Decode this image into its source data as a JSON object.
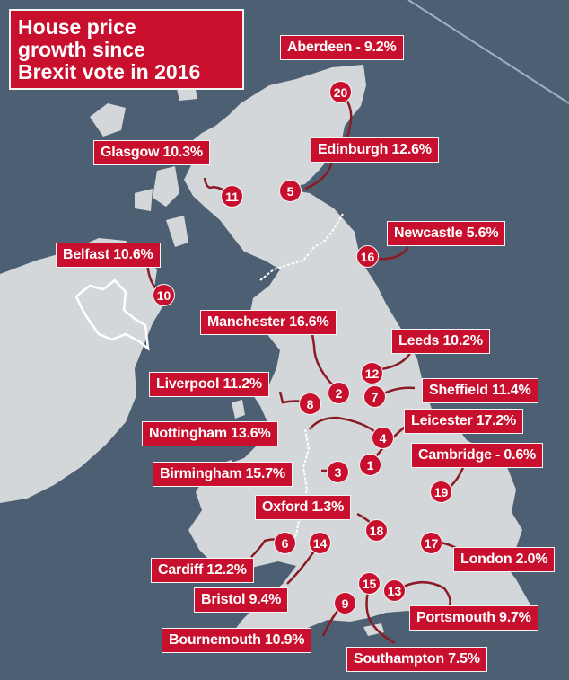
{
  "title_lines": [
    "House price",
    "growth since",
    "Brexit vote in 2016"
  ],
  "colors": {
    "sea": "#4d5f72",
    "land": "#d4d7da",
    "accent": "#c8102e",
    "border": "#ffffff"
  },
  "cities": [
    {
      "rank": "1",
      "label": "Leicester 17.2%"
    },
    {
      "rank": "2",
      "label": "Manchester 16.6%"
    },
    {
      "rank": "3",
      "label": "Birmingham 15.7%"
    },
    {
      "rank": "4",
      "label": "Nottingham 13.6%"
    },
    {
      "rank": "5",
      "label": "Edinburgh 12.6%"
    },
    {
      "rank": "6",
      "label": "Cardiff 12.2%"
    },
    {
      "rank": "7",
      "label": "Sheffield 11.4%"
    },
    {
      "rank": "8",
      "label": "Liverpool 11.2%"
    },
    {
      "rank": "9",
      "label": "Bournemouth 10.9%"
    },
    {
      "rank": "10",
      "label": "Belfast 10.6%"
    },
    {
      "rank": "11",
      "label": "Glasgow 10.3%"
    },
    {
      "rank": "12",
      "label": "Leeds 10.2%"
    },
    {
      "rank": "13",
      "label": "Portsmouth 9.7%"
    },
    {
      "rank": "14",
      "label": "Bristol 9.4%"
    },
    {
      "rank": "15",
      "label": "Southampton 7.5%"
    },
    {
      "rank": "16",
      "label": "Newcastle 5.6%"
    },
    {
      "rank": "17",
      "label": "London 2.0%"
    },
    {
      "rank": "18",
      "label": "Oxford 1.3%"
    },
    {
      "rank": "19",
      "label": "Cambridge - 0.6%"
    },
    {
      "rank": "20",
      "label": "Aberdeen - 9.2%"
    }
  ]
}
